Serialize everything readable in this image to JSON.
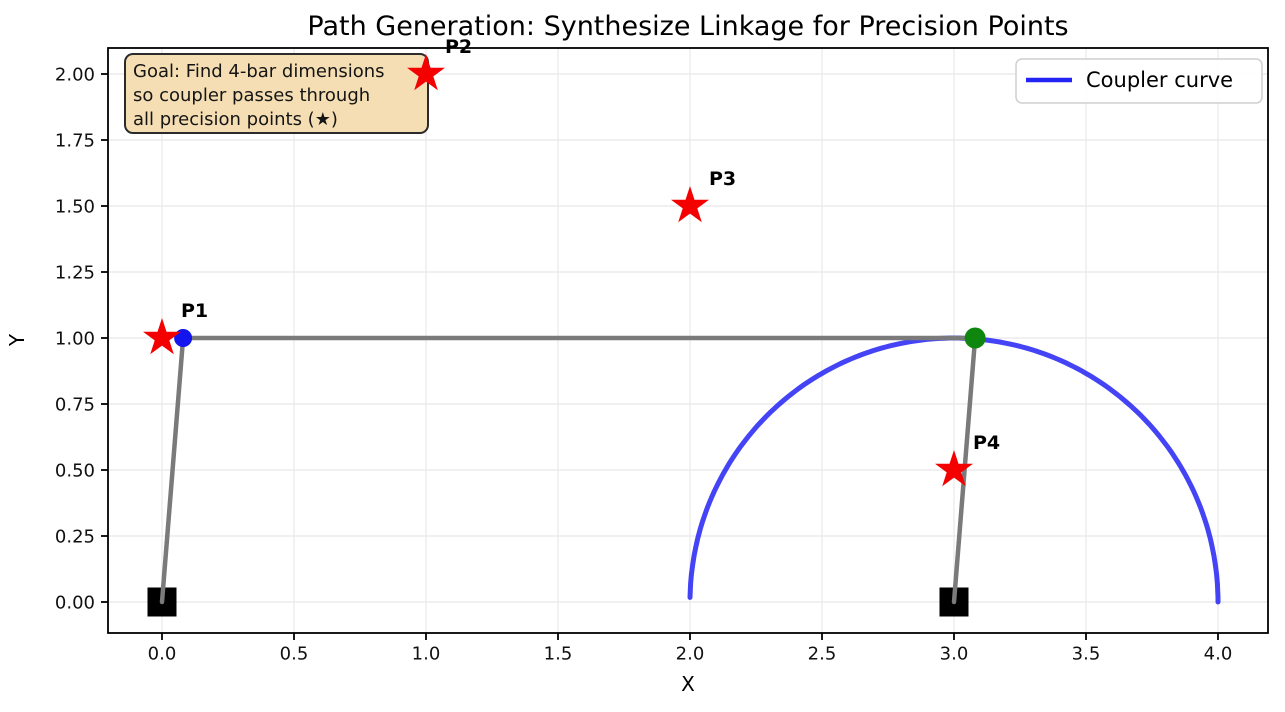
{
  "title": "Path Generation: Synthesize Linkage for Precision Points",
  "axes": {
    "xlabel": "X",
    "ylabel": "Y"
  },
  "legend": {
    "label": "Coupler curve",
    "line_color": "#2323f5"
  },
  "annotation": {
    "lines": [
      "Goal: Find 4-bar dimensions",
      "so coupler passes through",
      "all precision points (★)"
    ],
    "bg_color": "#f5deb3",
    "border_color": "#2b2b2b"
  },
  "chart_data": {
    "type": "line",
    "title": "Path Generation: Synthesize Linkage for Precision Points",
    "xlabel": "X",
    "ylabel": "Y",
    "xlim": [
      -0.2,
      4.2
    ],
    "ylim": [
      -0.12,
      2.1
    ],
    "grid": true,
    "legend_position": "upper right",
    "xtick_values": [
      0,
      0.5,
      1.0,
      1.5,
      2.0,
      2.5,
      3.0,
      3.5,
      4.0
    ],
    "xtick_labels": [
      "0.0",
      "0.5",
      "1.0",
      "1.5",
      "2.0",
      "2.5",
      "3.0",
      "3.5",
      "4.0"
    ],
    "ytick_values": [
      0,
      0.25,
      0.5,
      0.75,
      1.0,
      1.25,
      1.5,
      1.75,
      2.0
    ],
    "ytick_labels": [
      "0.00",
      "0.25",
      "0.50",
      "0.75",
      "1.00",
      "1.25",
      "1.50",
      "1.75",
      "2.00"
    ],
    "series": [
      {
        "name": "Coupler curve",
        "shape": "arc",
        "center": [
          3.0,
          0.0
        ],
        "radius": 1.0,
        "start_deg": 179,
        "end_deg": 0,
        "color": "#2323f5",
        "opacity": 0.85
      }
    ],
    "precision_points": {
      "marker": "star",
      "color": "#f40000",
      "points": [
        {
          "label": "P1",
          "x": 0.0,
          "y": 1.0
        },
        {
          "label": "P2",
          "x": 1.0,
          "y": 2.0
        },
        {
          "label": "P3",
          "x": 2.0,
          "y": 1.5
        },
        {
          "label": "P4",
          "x": 3.0,
          "y": 0.5
        }
      ]
    },
    "linkage": {
      "color": "#7a7a7a",
      "ground_pivots": [
        {
          "x": 0.0,
          "y": 0.0
        },
        {
          "x": 3.0,
          "y": 0.0
        }
      ],
      "links": [
        {
          "from": [
            0.0,
            0.0
          ],
          "to": [
            0.08,
            1.0
          ]
        },
        {
          "from": [
            0.08,
            1.0
          ],
          "to": [
            3.08,
            1.0
          ]
        },
        {
          "from": [
            3.08,
            1.0
          ],
          "to": [
            3.0,
            0.0
          ]
        }
      ],
      "joints": [
        {
          "x": 0.08,
          "y": 1.0,
          "color": "#1414ee",
          "r": 9
        },
        {
          "x": 3.08,
          "y": 1.0,
          "color": "#0f870f",
          "r": 10.5
        }
      ]
    }
  }
}
